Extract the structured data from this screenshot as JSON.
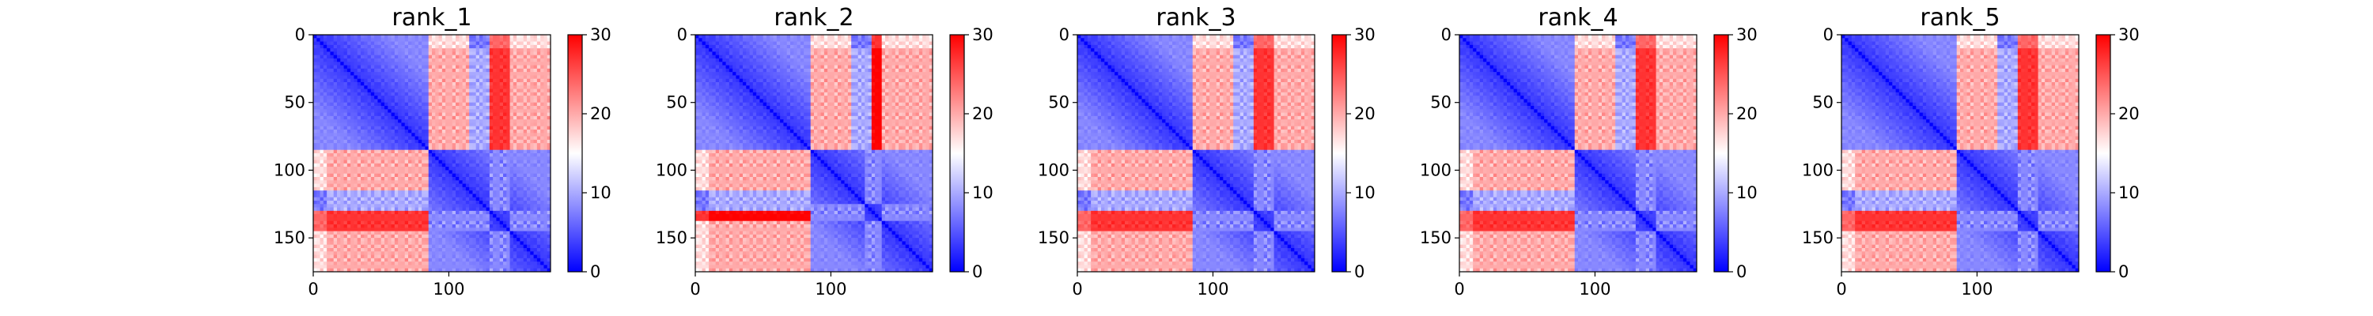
{
  "chart_data": {
    "type": "heatmap",
    "colormap": {
      "name": "bwr",
      "low": "#0000ff",
      "mid": "#ffffff",
      "high": "#ff0000"
    },
    "color_range": [
      0,
      30
    ],
    "colorbar_ticks": [
      0,
      10,
      20,
      30
    ],
    "x_range": [
      0,
      175
    ],
    "y_range": [
      0,
      175
    ],
    "y_inverted": true,
    "x_ticks": [
      0,
      100
    ],
    "y_ticks": [
      0,
      50,
      100,
      150
    ],
    "grid": false,
    "domain_boundary": 85,
    "panels": [
      {
        "title": "rank_1",
        "low_region": [
          0,
          85
        ],
        "alt_block": [
          130,
          145
        ],
        "alt_value": 27
      },
      {
        "title": "rank_2",
        "low_region": [
          0,
          85
        ],
        "alt_block": [
          125,
          138
        ],
        "alt_value": 30
      },
      {
        "title": "rank_3",
        "low_region": [
          0,
          85
        ],
        "alt_block": [
          130,
          145
        ],
        "alt_value": 27
      },
      {
        "title": "rank_4",
        "low_region": [
          0,
          85
        ],
        "alt_block": [
          130,
          145
        ],
        "alt_value": 27
      },
      {
        "title": "rank_5",
        "low_region": [
          0,
          85
        ],
        "alt_block": [
          130,
          145
        ],
        "alt_value": 27
      }
    ]
  }
}
